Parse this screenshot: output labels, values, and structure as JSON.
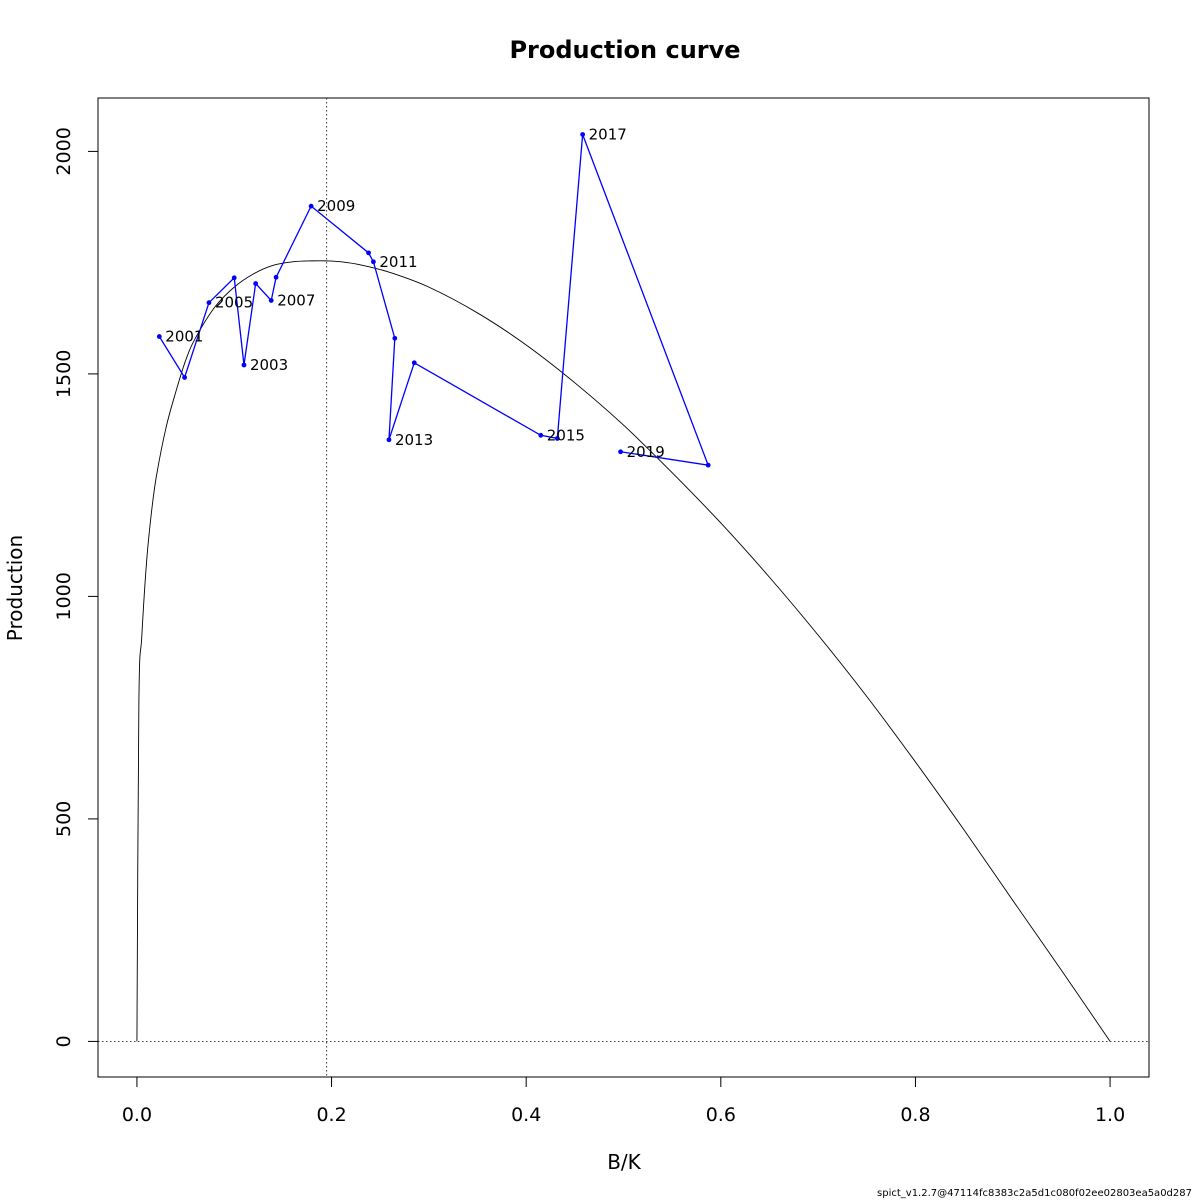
{
  "chart_data": {
    "type": "line",
    "title": "Production curve",
    "xlabel": "B/K",
    "ylabel": "Production",
    "xlim": [
      -0.04,
      1.04
    ],
    "ylim": [
      -80,
      2120
    ],
    "x_ticks": [
      0.0,
      0.2,
      0.4,
      0.6,
      0.8,
      1.0
    ],
    "x_tick_labels": [
      "0.0",
      "0.2",
      "0.4",
      "0.6",
      "0.8",
      "1.0"
    ],
    "y_ticks": [
      0,
      500,
      1000,
      1500,
      2000
    ],
    "y_tick_labels": [
      "0",
      "500",
      "1000",
      "1500",
      "2000"
    ],
    "grid": false,
    "production_curve": {
      "color": "#000000",
      "bmsy_over_k": 0.195,
      "msy": 1754,
      "x": [
        0.0,
        0.002,
        0.005,
        0.01,
        0.015,
        0.02,
        0.03,
        0.04,
        0.05,
        0.06,
        0.08,
        0.1,
        0.12,
        0.14,
        0.16,
        0.18,
        0.195,
        0.21,
        0.23,
        0.26,
        0.3,
        0.35,
        0.4,
        0.45,
        0.5,
        0.55,
        0.6,
        0.65,
        0.7,
        0.75,
        0.8,
        0.85,
        0.9,
        0.95,
        1.0
      ],
      "y": [
        0,
        760,
        910,
        1080,
        1190,
        1270,
        1380,
        1460,
        1530,
        1580,
        1650,
        1695,
        1725,
        1744,
        1752,
        1754,
        1754,
        1752,
        1745,
        1728,
        1695,
        1637,
        1565,
        1480,
        1385,
        1278,
        1165,
        1043,
        913,
        775,
        628,
        475,
        317,
        160,
        0
      ]
    },
    "reference_lines": {
      "vertical_x": 0.195,
      "horizontal_y": 0
    },
    "series": [
      {
        "color": "#0000ff",
        "x": [
          0.023,
          0.049,
          0.074,
          0.1,
          0.11,
          0.122,
          0.138,
          0.143,
          0.179,
          0.238,
          0.243,
          0.265,
          0.259,
          0.285,
          0.415,
          0.432,
          0.458,
          0.587,
          0.497
        ],
        "y": [
          1584,
          1492,
          1660,
          1716,
          1520,
          1703,
          1665,
          1717,
          1877,
          1772,
          1752,
          1580,
          1352,
          1525,
          1362,
          1355,
          2038,
          1295,
          1325
        ],
        "point_labels": [
          {
            "index": 0,
            "text": "2001"
          },
          {
            "index": 2,
            "text": "2005"
          },
          {
            "index": 4,
            "text": "2003"
          },
          {
            "index": 6,
            "text": "2007"
          },
          {
            "index": 8,
            "text": "2009"
          },
          {
            "index": 10,
            "text": "2011"
          },
          {
            "index": 12,
            "text": "2013"
          },
          {
            "index": 14,
            "text": "2015"
          },
          {
            "index": 16,
            "text": "2017"
          },
          {
            "index": 18,
            "text": "2019"
          }
        ]
      }
    ]
  },
  "footer": "spict_v1.2.7@47114fc8383c2a5d1c080f02ee02803ea5a0d287"
}
